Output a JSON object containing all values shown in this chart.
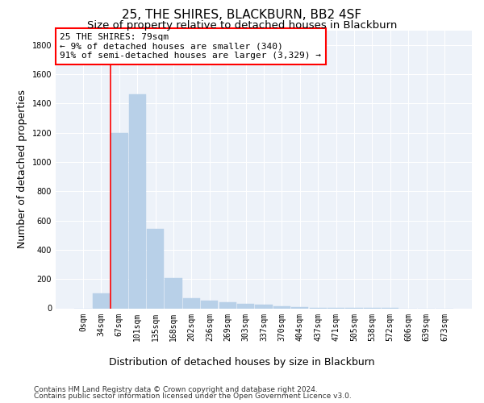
{
  "title": "25, THE SHIRES, BLACKBURN, BB2 4SF",
  "subtitle": "Size of property relative to detached houses in Blackburn",
  "xlabel": "Distribution of detached houses by size in Blackburn",
  "ylabel": "Number of detached properties",
  "bar_color": "#b8d0e8",
  "categories": [
    "0sqm",
    "34sqm",
    "67sqm",
    "101sqm",
    "135sqm",
    "168sqm",
    "202sqm",
    "236sqm",
    "269sqm",
    "303sqm",
    "337sqm",
    "370sqm",
    "404sqm",
    "437sqm",
    "471sqm",
    "505sqm",
    "538sqm",
    "572sqm",
    "606sqm",
    "639sqm",
    "673sqm"
  ],
  "values": [
    0,
    100,
    1200,
    1460,
    540,
    205,
    70,
    50,
    40,
    30,
    25,
    15,
    10,
    5,
    3,
    2,
    1,
    1,
    0,
    0,
    0
  ],
  "ylim": [
    0,
    1900
  ],
  "yticks": [
    0,
    200,
    400,
    600,
    800,
    1000,
    1200,
    1400,
    1600,
    1800
  ],
  "property_line_bin": 2,
  "property_label": "25 THE SHIRES: 79sqm",
  "annotation_line1": "← 9% of detached houses are smaller (340)",
  "annotation_line2": "91% of semi-detached houses are larger (3,329) →",
  "footer_line1": "Contains HM Land Registry data © Crown copyright and database right 2024.",
  "footer_line2": "Contains public sector information licensed under the Open Government Licence v3.0.",
  "background_color": "#edf2f9",
  "grid_color": "#ffffff",
  "title_fontsize": 11,
  "subtitle_fontsize": 9.5,
  "axis_label_fontsize": 9,
  "tick_fontsize": 7,
  "annotation_fontsize": 8,
  "footer_fontsize": 6.5
}
